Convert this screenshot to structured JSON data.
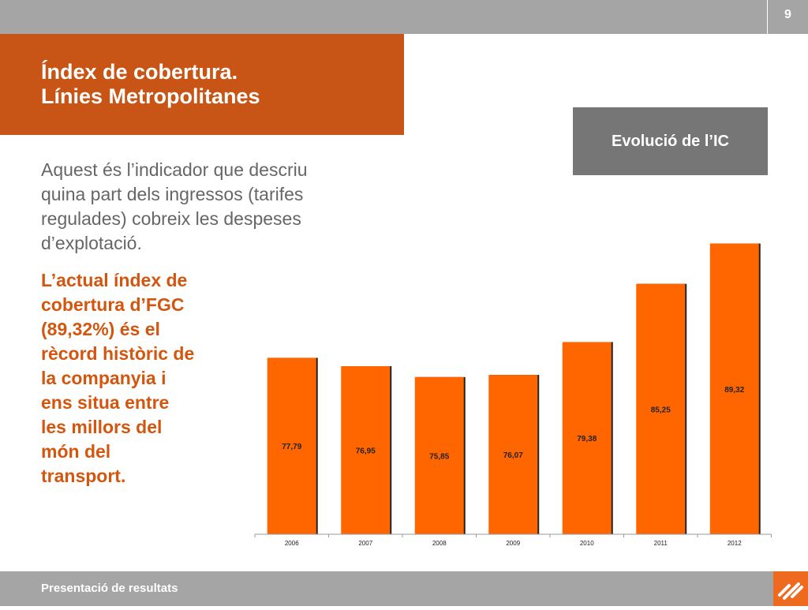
{
  "header": {
    "page_number": "9"
  },
  "title": {
    "line1": "Índex de cobertura.",
    "line2": "Línies Metropolitanes"
  },
  "badge": {
    "label": "Evolució de l’IC"
  },
  "description": {
    "lines": [
      "Aquest és l’indicador que descriu",
      "quina part dels ingressos (tarifes",
      "regulades) cobreix les despeses",
      "d’explotació."
    ]
  },
  "highlight": {
    "lines": [
      "L’actual índex de",
      "cobertura d’FGC",
      "(89,32%) és el",
      "rècord històric de",
      "la companyia i",
      "ens situa entre",
      "les millors del",
      "món del",
      "transport."
    ]
  },
  "footer": {
    "label": "Presentació de resultats"
  },
  "colors": {
    "bar": "#ff6600",
    "title_bg": "#c85515",
    "highlight_text": "#d4560e",
    "gray": "#a5a5a5"
  },
  "icons": {
    "logo": "fgc-logo-icon"
  },
  "chart_data": {
    "type": "bar",
    "categories": [
      "2006",
      "2007",
      "2008",
      "2009",
      "2010",
      "2011",
      "2012"
    ],
    "values": [
      77.79,
      76.95,
      75.85,
      76.07,
      79.38,
      85.25,
      89.32
    ],
    "value_labels": [
      "77,79",
      "76,95",
      "75,85",
      "76,07",
      "79,38",
      "85,25",
      "89,32"
    ],
    "ylim": [
      60,
      90
    ],
    "grid": false,
    "legend": "none"
  }
}
